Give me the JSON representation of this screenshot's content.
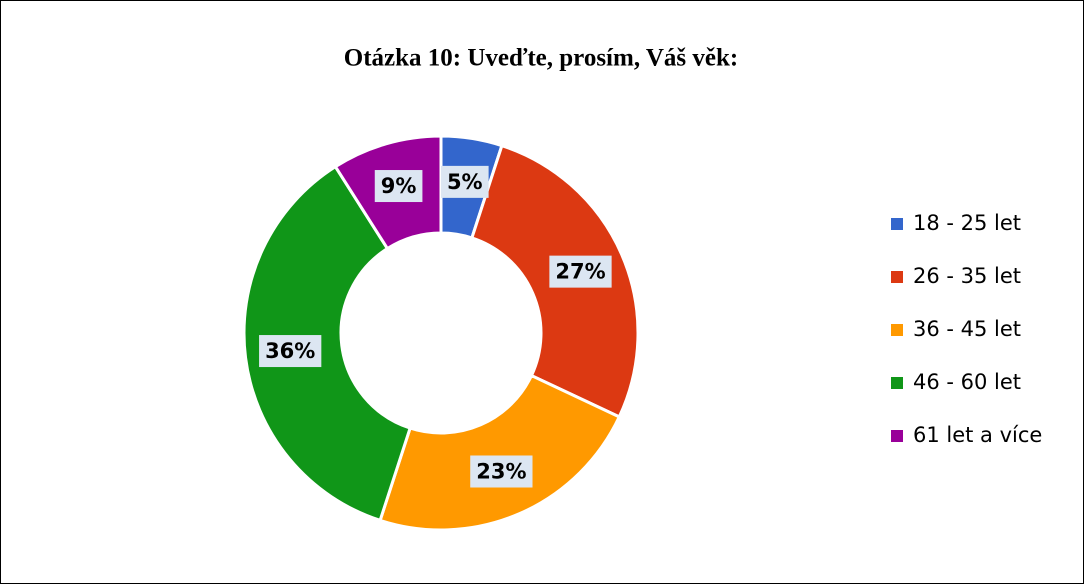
{
  "chart_data": {
    "type": "donut",
    "title": "Otázka 10: Uveďte, prosím, Váš věk:",
    "categories": [
      "18 - 25 let",
      "26 - 35 let",
      "36 - 45 let",
      "46 - 60 let",
      "61 let a více"
    ],
    "values": [
      5,
      27,
      23,
      36,
      9
    ],
    "value_labels": [
      "5%",
      "27%",
      "23%",
      "36%",
      "9%"
    ],
    "colors": [
      "#3366cc",
      "#dc3912",
      "#ff9900",
      "#109618",
      "#990099"
    ],
    "legend": "right"
  }
}
